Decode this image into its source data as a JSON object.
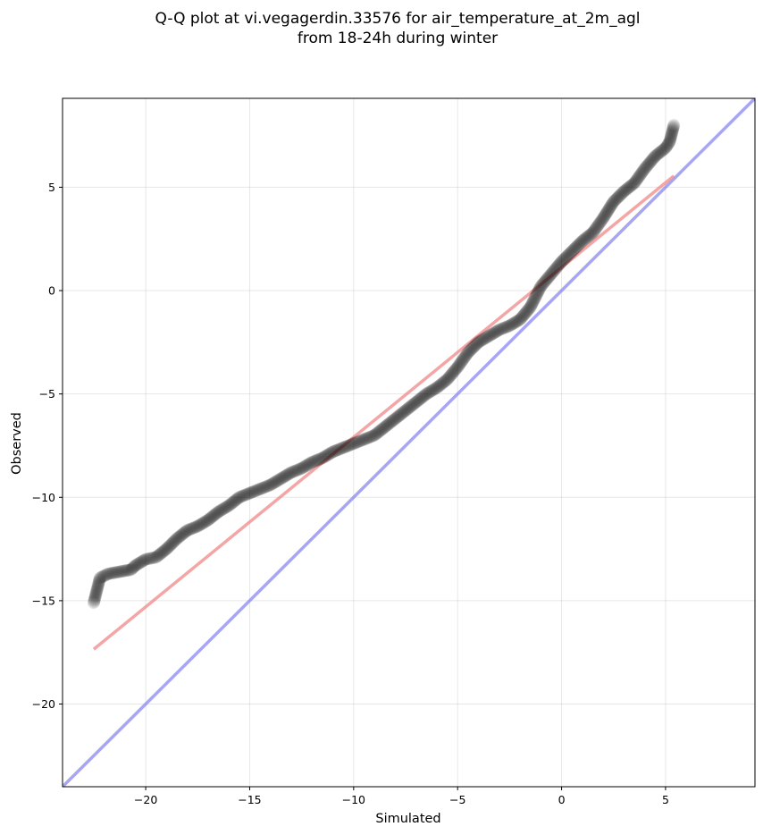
{
  "chart_data": {
    "type": "scatter",
    "title_lines": [
      "Q-Q plot at vi.vegagerdin.33576 for air_temperature_at_2m_agl",
      "from 18-24h during winter"
    ],
    "xlabel": "Simulated",
    "ylabel": "Observed",
    "xlim": [
      -24,
      9.3
    ],
    "ylim": [
      -24,
      9.3
    ],
    "xticks": [
      -20,
      -15,
      -10,
      -5,
      0,
      5
    ],
    "yticks": [
      -20,
      -15,
      -10,
      -5,
      0,
      5
    ],
    "xtick_labels": [
      "−20",
      "−15",
      "−10",
      "−5",
      "0",
      "5"
    ],
    "ytick_labels": [
      "−20",
      "−15",
      "−10",
      "−5",
      "0",
      "5"
    ],
    "grid": true,
    "points_color": "#000000",
    "quantile_points": [
      [
        -22.5,
        -15.1
      ],
      [
        -22.2,
        -13.9
      ],
      [
        -21.8,
        -13.7
      ],
      [
        -20.7,
        -13.5
      ],
      [
        -20.5,
        -13.3
      ],
      [
        -20.0,
        -13.0
      ],
      [
        -19.5,
        -12.9
      ],
      [
        -19.0,
        -12.5
      ],
      [
        -18.5,
        -12.0
      ],
      [
        -18.0,
        -11.6
      ],
      [
        -17.5,
        -11.4
      ],
      [
        -17.0,
        -11.1
      ],
      [
        -16.5,
        -10.7
      ],
      [
        -16.0,
        -10.4
      ],
      [
        -15.5,
        -10.0
      ],
      [
        -15.0,
        -9.8
      ],
      [
        -14.5,
        -9.6
      ],
      [
        -14.0,
        -9.4
      ],
      [
        -13.5,
        -9.1
      ],
      [
        -13.0,
        -8.8
      ],
      [
        -12.5,
        -8.6
      ],
      [
        -12.0,
        -8.3
      ],
      [
        -11.5,
        -8.1
      ],
      [
        -11.0,
        -7.8
      ],
      [
        -10.5,
        -7.6
      ],
      [
        -10.0,
        -7.4
      ],
      [
        -9.5,
        -7.2
      ],
      [
        -9.0,
        -7.0
      ],
      [
        -8.5,
        -6.6
      ],
      [
        -8.0,
        -6.2
      ],
      [
        -7.5,
        -5.8
      ],
      [
        -7.0,
        -5.4
      ],
      [
        -6.5,
        -5.0
      ],
      [
        -6.0,
        -4.7
      ],
      [
        -5.5,
        -4.3
      ],
      [
        -5.0,
        -3.7
      ],
      [
        -4.5,
        -3.0
      ],
      [
        -4.0,
        -2.5
      ],
      [
        -3.5,
        -2.2
      ],
      [
        -3.0,
        -1.9
      ],
      [
        -2.5,
        -1.7
      ],
      [
        -2.0,
        -1.4
      ],
      [
        -1.5,
        -0.8
      ],
      [
        -1.0,
        0.2
      ],
      [
        -0.5,
        0.8
      ],
      [
        0.0,
        1.4
      ],
      [
        0.5,
        1.9
      ],
      [
        1.0,
        2.4
      ],
      [
        1.5,
        2.8
      ],
      [
        2.0,
        3.5
      ],
      [
        2.5,
        4.3
      ],
      [
        3.0,
        4.8
      ],
      [
        3.5,
        5.2
      ],
      [
        4.0,
        5.9
      ],
      [
        4.5,
        6.5
      ],
      [
        5.0,
        6.9
      ],
      [
        5.2,
        7.2
      ],
      [
        5.4,
        8.0
      ]
    ],
    "fit_line": {
      "x": [
        -22.5,
        5.4
      ],
      "y": [
        -17.35,
        5.55
      ],
      "color": "#f08080"
    },
    "identity_line": {
      "x": [
        -24,
        9.3
      ],
      "y": [
        -24,
        9.3
      ],
      "color": "#8080f0"
    }
  }
}
